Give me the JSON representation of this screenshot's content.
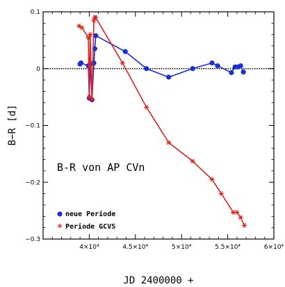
{
  "chart_data": {
    "type": "line",
    "xlabel": "JD 2400000 +",
    "ylabel": "B−R [d]",
    "annotation": "B-R von AP CVn",
    "xlim": [
      35000,
      60000
    ],
    "ylim": [
      -0.3,
      0.1
    ],
    "x_ticks": [
      {
        "value": 40000,
        "label": "4×10⁴"
      },
      {
        "value": 45000,
        "label": "4.5×10⁴"
      },
      {
        "value": 50000,
        "label": "5×10⁴"
      },
      {
        "value": 55000,
        "label": "5.5×10⁴"
      },
      {
        "value": 60000,
        "label": "6×10⁴"
      }
    ],
    "y_ticks": [
      {
        "value": 0.1,
        "label": "0.1"
      },
      {
        "value": 0,
        "label": "0"
      },
      {
        "value": -0.1,
        "label": "−0.1"
      },
      {
        "value": -0.2,
        "label": "−0.2"
      },
      {
        "value": -0.3,
        "label": "−0.3"
      }
    ],
    "zero_line": true,
    "legend_position": "bottom-left",
    "series": [
      {
        "name": "neue Periode",
        "color": "#1a2fd6",
        "marker": "circle",
        "x": [
          39000,
          39100,
          39900,
          40000,
          40100,
          40300,
          40500,
          40600,
          40700,
          43900,
          46200,
          48600,
          51200,
          53300,
          53900,
          55400,
          55800,
          56100,
          56400,
          56700
        ],
        "y": [
          0.008,
          0.01,
          0.005,
          -0.052,
          0.008,
          -0.055,
          0.01,
          0.035,
          0.058,
          0.03,
          0.0,
          -0.015,
          0.0,
          0.01,
          0.005,
          -0.007,
          0.003,
          0.003,
          0.005,
          -0.006
        ]
      },
      {
        "name": "Periode GCVS",
        "color": "#dd2222",
        "marker": "star",
        "x": [
          38900,
          39200,
          39900,
          40000,
          40100,
          40300,
          40500,
          40600,
          40700,
          43600,
          46200,
          48600,
          51200,
          53300,
          54300,
          55600,
          56000,
          56400,
          56800
        ],
        "y": [
          0.075,
          0.072,
          0.055,
          -0.05,
          0.06,
          -0.055,
          0.085,
          0.09,
          0.09,
          0.01,
          -0.068,
          -0.13,
          -0.163,
          -0.195,
          -0.22,
          -0.253,
          -0.253,
          -0.262,
          -0.276
        ]
      }
    ]
  }
}
